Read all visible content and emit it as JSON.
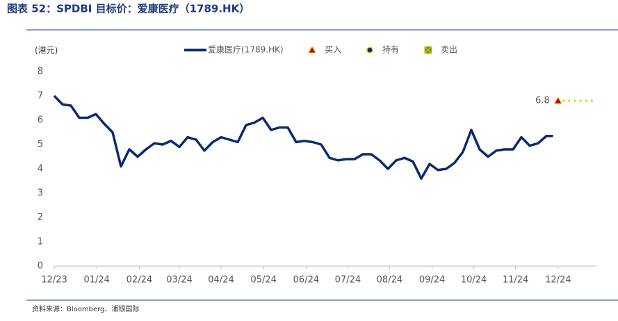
{
  "chart_data": {
    "type": "line",
    "title": "图表 52：SPDBI 目标价：爱康医疗（1789.HK）",
    "y_label": "(港元)",
    "source": "资料来源：Bloomberg、浦银国际",
    "xlim": [
      0,
      65
    ],
    "xticks": [
      {
        "value": 0,
        "label": "12/23"
      },
      {
        "value": 5.1,
        "label": "01/24"
      },
      {
        "value": 10.2,
        "label": "02/24"
      },
      {
        "value": 15,
        "label": "03/24"
      },
      {
        "value": 20,
        "label": "04/24"
      },
      {
        "value": 25.1,
        "label": "05/24"
      },
      {
        "value": 30.2,
        "label": "06/24"
      },
      {
        "value": 35.2,
        "label": "07/24"
      },
      {
        "value": 40.2,
        "label": "08/24"
      },
      {
        "value": 45.3,
        "label": "09/24"
      },
      {
        "value": 50.3,
        "label": "10/24"
      },
      {
        "value": 55.3,
        "label": "11/24"
      },
      {
        "value": 60.4,
        "label": "12/24"
      }
    ],
    "ylim": [
      0,
      8
    ],
    "yticks": [
      0,
      1,
      2,
      3,
      4,
      5,
      6,
      7,
      8
    ],
    "series": [
      {
        "name": "爱康医疗(1789.HK)",
        "marker": "line",
        "color": "#0b2a6e",
        "x": [
          0,
          1,
          2,
          3,
          4,
          5,
          6,
          7,
          8,
          9,
          10,
          11,
          12,
          13,
          14,
          15,
          16,
          17,
          18,
          19,
          20,
          21,
          22,
          23,
          24,
          25,
          26,
          27,
          28,
          29,
          30,
          31,
          32,
          33,
          34,
          35,
          36,
          37,
          38,
          39,
          40,
          41,
          42,
          43,
          44,
          45,
          46,
          47,
          48,
          49,
          50,
          51,
          52,
          53,
          54,
          55,
          56,
          57,
          58,
          59,
          59.8
        ],
        "values": [
          7.0,
          6.65,
          6.6,
          6.1,
          6.1,
          6.25,
          5.85,
          5.5,
          4.1,
          4.8,
          4.5,
          4.8,
          5.05,
          5.0,
          5.15,
          4.9,
          5.3,
          5.2,
          4.75,
          5.1,
          5.3,
          5.2,
          5.1,
          5.8,
          5.9,
          6.1,
          5.6,
          5.7,
          5.7,
          5.1,
          5.15,
          5.1,
          5.0,
          4.45,
          4.35,
          4.4,
          4.4,
          4.6,
          4.6,
          4.35,
          4.0,
          4.35,
          4.45,
          4.3,
          3.6,
          4.2,
          3.95,
          4.0,
          4.25,
          4.7,
          5.6,
          4.8,
          4.5,
          4.75,
          4.8,
          4.8,
          5.3,
          4.95,
          5.05,
          5.35,
          5.35
        ]
      },
      {
        "name": "买入",
        "marker": "triangle",
        "color": "#c00000",
        "x": [
          60.4
        ],
        "values": [
          6.8
        ]
      },
      {
        "name": "持有",
        "marker": "circle",
        "color": "#0b2a6e",
        "x": [],
        "values": []
      },
      {
        "name": "卖出",
        "marker": "cross",
        "color": "#3a9a3a",
        "x": [],
        "values": []
      }
    ]
  }
}
